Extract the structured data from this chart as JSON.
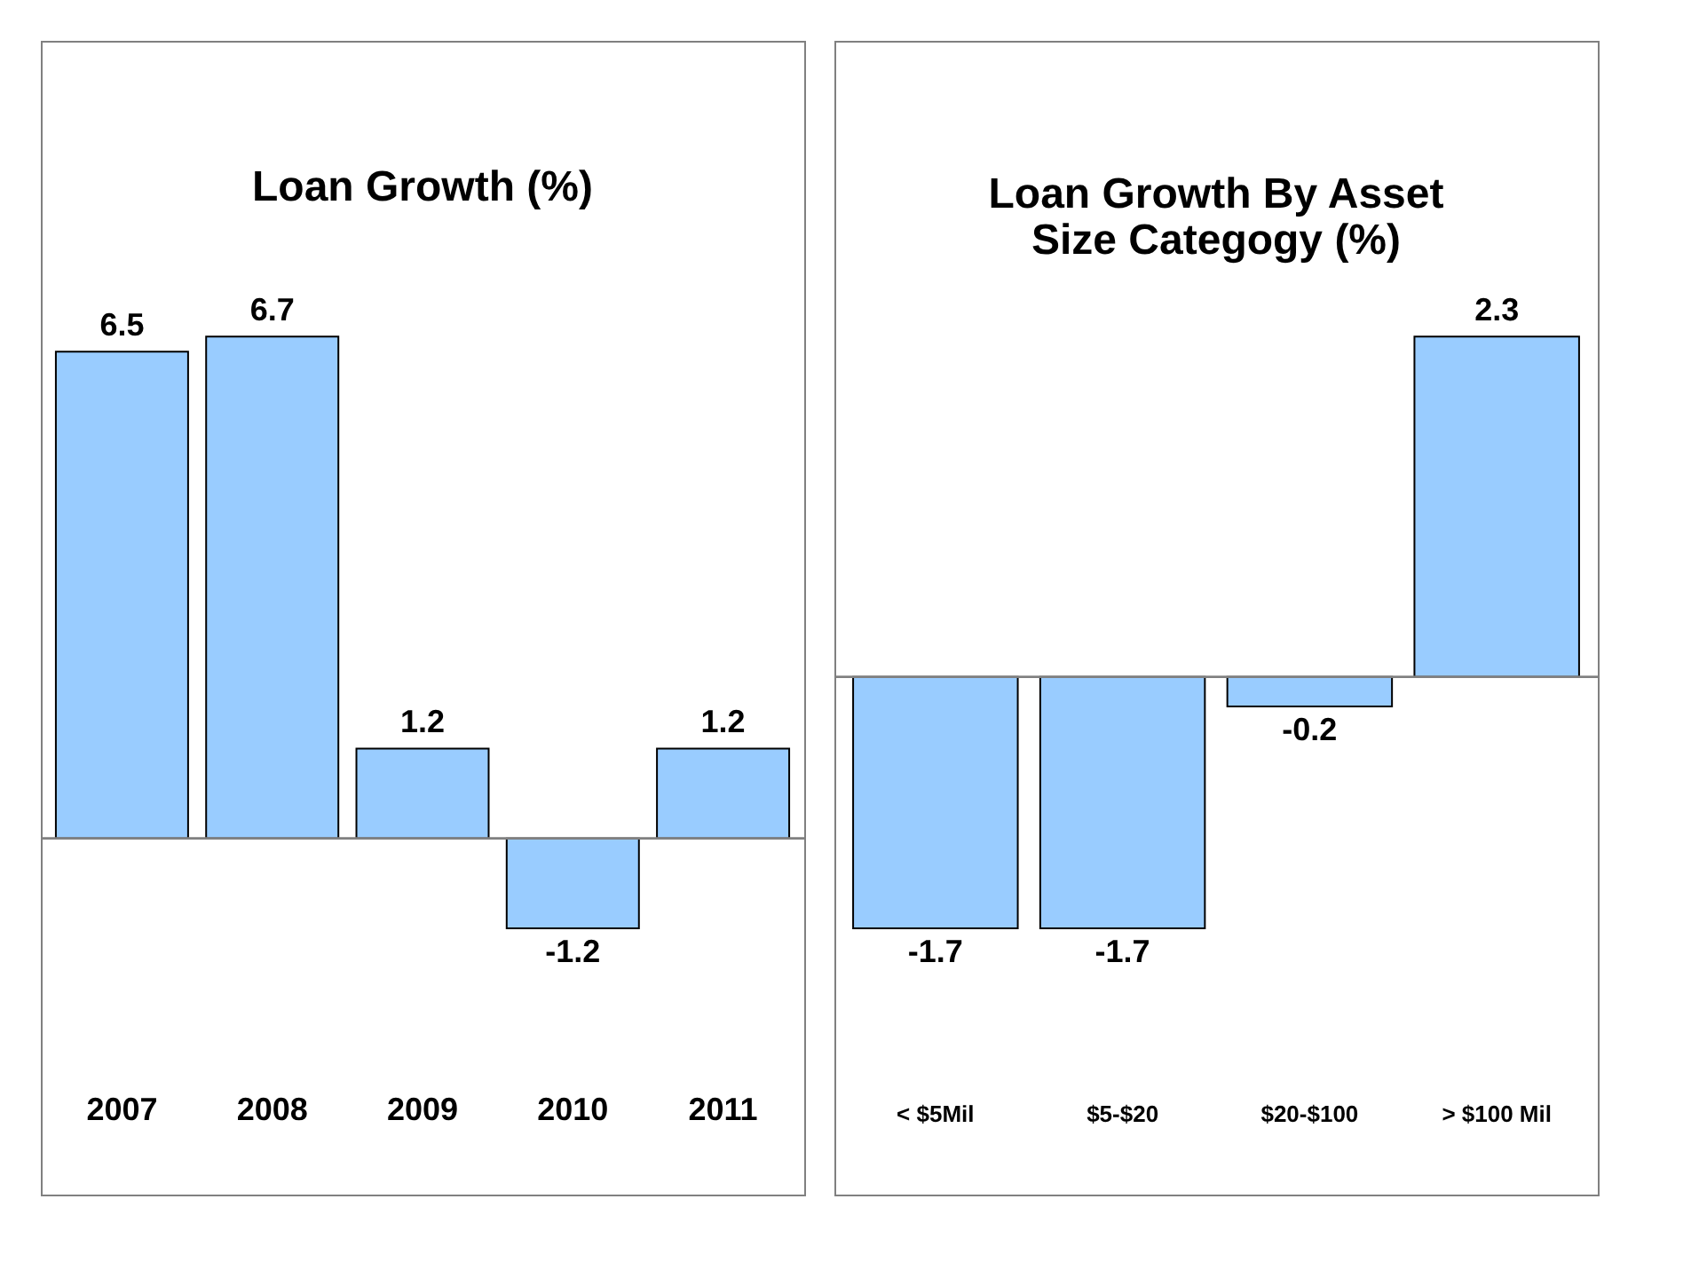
{
  "chart_data": [
    {
      "type": "bar",
      "title": "Loan Growth (%)",
      "categories": [
        "2007",
        "2008",
        "2009",
        "2010",
        "2011"
      ],
      "values": [
        6.5,
        6.7,
        1.2,
        -1.2,
        1.2
      ],
      "color": "#99ccff",
      "data_labels": true,
      "tick_labels": "x"
    },
    {
      "type": "bar",
      "title": "Loan Growth By Asset\nSize Categogy (%)",
      "categories": [
        "< $5Mil",
        "$5-$20",
        "$20-$100",
        "> $100 Mil"
      ],
      "values": [
        -1.7,
        -1.7,
        -0.2,
        2.3
      ],
      "color": "#99ccff",
      "data_labels": true,
      "tick_labels": "x"
    }
  ]
}
